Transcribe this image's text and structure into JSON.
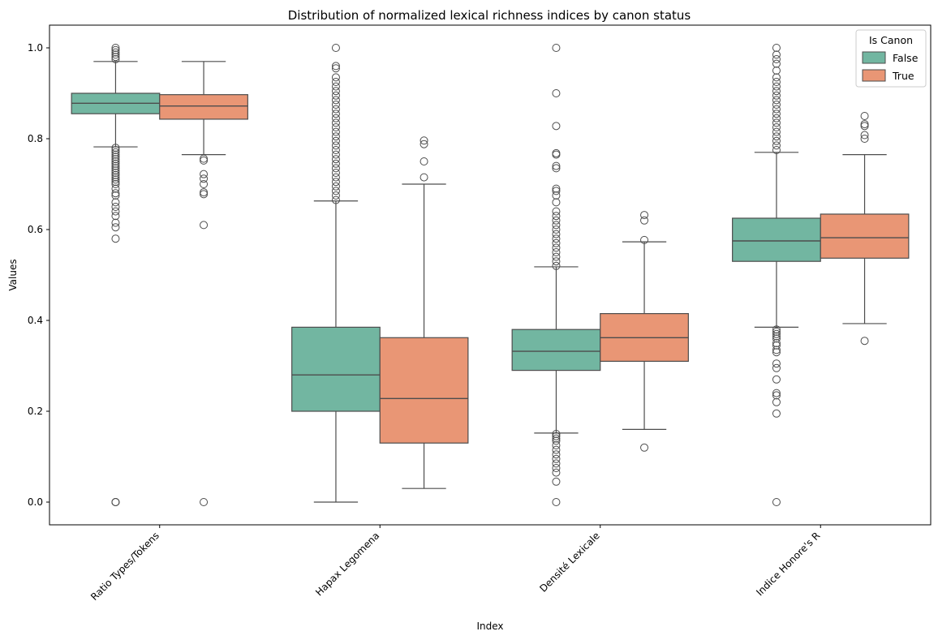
{
  "chart_data": {
    "type": "boxplot",
    "title": "Distribution of normalized lexical richness indices by canon status",
    "xlabel": "Index",
    "ylabel": "Values",
    "ylim": [
      -0.05,
      1.05
    ],
    "yticks": [
      0.0,
      0.2,
      0.4,
      0.6,
      0.8,
      1.0
    ],
    "yticklabels": [
      "0.0",
      "0.2",
      "0.4",
      "0.6",
      "0.8",
      "1.0"
    ],
    "categories": [
      "Ratio Types/Tokens",
      "Hapax Legomena",
      "Densité Lexicale",
      "Indice Honore's R"
    ],
    "legend": {
      "title": "Is Canon",
      "position": "top-right"
    },
    "series": [
      {
        "name": "False",
        "color": "#72b6a1",
        "boxes": [
          {
            "whisker_low": 0.782,
            "q1": 0.855,
            "median": 0.878,
            "q3": 0.9,
            "whisker_high": 0.97,
            "outliers": [
              0.0,
              0.0,
              0.0,
              0.58,
              0.605,
              0.615,
              0.63,
              0.64,
              0.65,
              0.66,
              0.675,
              0.68,
              0.69,
              0.7,
              0.705,
              0.71,
              0.715,
              0.72,
              0.725,
              0.73,
              0.735,
              0.74,
              0.745,
              0.75,
              0.755,
              0.76,
              0.765,
              0.77,
              0.775,
              0.78,
              0.975,
              0.98,
              0.985,
              0.99,
              0.995,
              1.0
            ]
          },
          {
            "whisker_low": 0.0,
            "q1": 0.2,
            "median": 0.28,
            "q3": 0.385,
            "whisker_high": 0.663,
            "outliers": [
              0.665,
              0.675,
              0.685,
              0.695,
              0.705,
              0.715,
              0.725,
              0.735,
              0.745,
              0.755,
              0.765,
              0.775,
              0.785,
              0.795,
              0.805,
              0.815,
              0.825,
              0.835,
              0.845,
              0.855,
              0.865,
              0.875,
              0.885,
              0.895,
              0.905,
              0.915,
              0.925,
              0.935,
              0.955,
              0.96,
              1.0
            ]
          },
          {
            "whisker_low": 0.152,
            "q1": 0.29,
            "median": 0.332,
            "q3": 0.38,
            "whisker_high": 0.518,
            "outliers": [
              0.0,
              0.045,
              0.065,
              0.075,
              0.085,
              0.095,
              0.105,
              0.115,
              0.125,
              0.135,
              0.14,
              0.145,
              0.15,
              0.52,
              0.53,
              0.54,
              0.55,
              0.56,
              0.57,
              0.58,
              0.59,
              0.6,
              0.61,
              0.62,
              0.63,
              0.64,
              0.66,
              0.675,
              0.685,
              0.69,
              0.735,
              0.74,
              0.765,
              0.768,
              0.828,
              0.9,
              1.0
            ]
          },
          {
            "whisker_low": 0.385,
            "q1": 0.53,
            "median": 0.575,
            "q3": 0.625,
            "whisker_high": 0.77,
            "outliers": [
              0.0,
              0.195,
              0.22,
              0.235,
              0.24,
              0.27,
              0.295,
              0.305,
              0.33,
              0.335,
              0.345,
              0.35,
              0.36,
              0.365,
              0.37,
              0.375,
              0.38,
              0.775,
              0.785,
              0.795,
              0.805,
              0.815,
              0.825,
              0.835,
              0.845,
              0.855,
              0.865,
              0.875,
              0.885,
              0.895,
              0.905,
              0.915,
              0.925,
              0.935,
              0.95,
              0.965,
              0.975,
              0.985,
              1.0
            ]
          }
        ]
      },
      {
        "name": "True",
        "color": "#e99675",
        "boxes": [
          {
            "whisker_low": 0.765,
            "q1": 0.843,
            "median": 0.872,
            "q3": 0.897,
            "whisker_high": 0.97,
            "outliers": [
              0.0,
              0.61,
              0.678,
              0.682,
              0.7,
              0.712,
              0.722,
              0.752,
              0.756
            ]
          },
          {
            "whisker_low": 0.03,
            "q1": 0.13,
            "median": 0.228,
            "q3": 0.362,
            "whisker_high": 0.7,
            "outliers": [
              0.715,
              0.75,
              0.788,
              0.796
            ]
          },
          {
            "whisker_low": 0.16,
            "q1": 0.31,
            "median": 0.362,
            "q3": 0.415,
            "whisker_high": 0.573,
            "outliers": [
              0.12,
              0.577,
              0.62,
              0.632
            ]
          },
          {
            "whisker_low": 0.393,
            "q1": 0.537,
            "median": 0.582,
            "q3": 0.634,
            "whisker_high": 0.765,
            "outliers": [
              0.355,
              0.8,
              0.808,
              0.828,
              0.832,
              0.85
            ]
          }
        ]
      }
    ],
    "grid": false
  }
}
